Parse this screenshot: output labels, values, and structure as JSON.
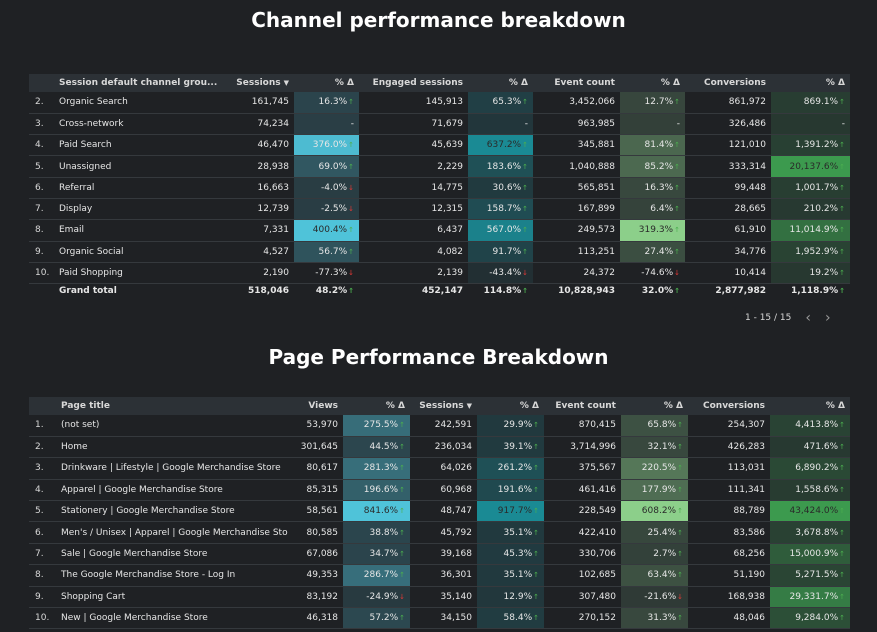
{
  "section1": {
    "title": "Channel performance breakdown",
    "columns": [
      "Session default channel grou...",
      "Sessions",
      "% Δ",
      "Engaged sessions",
      "% Δ",
      "Event count",
      "% Δ",
      "Conversions",
      "% Δ"
    ],
    "sort_indicator": "▼",
    "rows": [
      {
        "i": "2.",
        "name": "Organic Search",
        "c": [
          [
            "161,745"
          ],
          [
            "16.3%",
            "up"
          ],
          [
            "145,913"
          ],
          [
            "65.3%",
            "up"
          ],
          [
            "3,452,066"
          ],
          [
            "12.7%",
            "up"
          ],
          [
            "861,972"
          ],
          [
            "869.1%",
            "up"
          ]
        ]
      },
      {
        "i": "3.",
        "name": "Cross-network",
        "c": [
          [
            "74,234"
          ],
          [
            "-",
            ""
          ],
          [
            "71,679"
          ],
          [
            "-",
            ""
          ],
          [
            "963,985"
          ],
          [
            "-",
            ""
          ],
          [
            "326,486"
          ],
          [
            "-",
            ""
          ]
        ]
      },
      {
        "i": "4.",
        "name": "Paid Search",
        "c": [
          [
            "46,470"
          ],
          [
            "376.0%",
            "up"
          ],
          [
            "45,639"
          ],
          [
            "637.2%",
            "up"
          ],
          [
            "345,881"
          ],
          [
            "81.4%",
            "up"
          ],
          [
            "121,010"
          ],
          [
            "1,391.2%",
            "up"
          ]
        ]
      },
      {
        "i": "5.",
        "name": "Unassigned",
        "c": [
          [
            "28,938"
          ],
          [
            "69.0%",
            "up"
          ],
          [
            "2,229"
          ],
          [
            "183.6%",
            "up"
          ],
          [
            "1,040,888"
          ],
          [
            "85.2%",
            "up"
          ],
          [
            "333,314"
          ],
          [
            "20,137.6%",
            "up"
          ]
        ]
      },
      {
        "i": "6.",
        "name": "Referral",
        "c": [
          [
            "16,663"
          ],
          [
            "-4.0%",
            "down"
          ],
          [
            "14,775"
          ],
          [
            "30.6%",
            "up"
          ],
          [
            "565,851"
          ],
          [
            "16.3%",
            "up"
          ],
          [
            "99,448"
          ],
          [
            "1,001.7%",
            "up"
          ]
        ]
      },
      {
        "i": "7.",
        "name": "Display",
        "c": [
          [
            "12,739"
          ],
          [
            "-2.5%",
            "down"
          ],
          [
            "12,315"
          ],
          [
            "158.7%",
            "up"
          ],
          [
            "167,899"
          ],
          [
            "6.4%",
            "up"
          ],
          [
            "28,665"
          ],
          [
            "210.2%",
            "up"
          ]
        ]
      },
      {
        "i": "8.",
        "name": "Email",
        "c": [
          [
            "7,331"
          ],
          [
            "400.4%",
            "up"
          ],
          [
            "6,437"
          ],
          [
            "567.0%",
            "up"
          ],
          [
            "249,573"
          ],
          [
            "319.3%",
            "up"
          ],
          [
            "61,910"
          ],
          [
            "11,014.9%",
            "up"
          ]
        ]
      },
      {
        "i": "9.",
        "name": "Organic Social",
        "c": [
          [
            "4,527"
          ],
          [
            "56.7%",
            "up"
          ],
          [
            "4,082"
          ],
          [
            "91.7%",
            "up"
          ],
          [
            "113,251"
          ],
          [
            "27.4%",
            "up"
          ],
          [
            "34,776"
          ],
          [
            "1,952.9%",
            "up"
          ]
        ]
      },
      {
        "i": "10.",
        "name": "Paid Shopping",
        "c": [
          [
            "2,190"
          ],
          [
            "-77.3%",
            "down"
          ],
          [
            "2,139"
          ],
          [
            "-43.4%",
            "down"
          ],
          [
            "24,372"
          ],
          [
            "-74.6%",
            "down"
          ],
          [
            "10,414"
          ],
          [
            "19.2%",
            "up"
          ]
        ]
      }
    ],
    "total": {
      "name": "Grand total",
      "c": [
        [
          "518,046"
        ],
        [
          "48.2%",
          "up"
        ],
        [
          "452,147"
        ],
        [
          "114.8%",
          "up"
        ],
        [
          "10,828,943"
        ],
        [
          "32.0%",
          "up"
        ],
        [
          "2,877,982"
        ],
        [
          "1,118.9%",
          "up"
        ]
      ]
    },
    "pager": "1 - 15 / 15"
  },
  "section2": {
    "title": "Page Performance Breakdown",
    "columns": [
      "Page title",
      "Views",
      "% Δ",
      "Sessions",
      "% Δ",
      "Event count",
      "% Δ",
      "Conversions",
      "% Δ"
    ],
    "sort_indicator": "▼",
    "rows": [
      {
        "i": "1.",
        "name": "(not set)",
        "c": [
          [
            "53,970"
          ],
          [
            "275.5%",
            "up"
          ],
          [
            "242,591"
          ],
          [
            "29.9%",
            "up"
          ],
          [
            "870,415"
          ],
          [
            "65.8%",
            "up"
          ],
          [
            "254,307"
          ],
          [
            "4,413.8%",
            "up"
          ]
        ]
      },
      {
        "i": "2.",
        "name": "Home",
        "c": [
          [
            "301,645"
          ],
          [
            "44.5%",
            "up"
          ],
          [
            "236,034"
          ],
          [
            "39.1%",
            "up"
          ],
          [
            "3,714,996"
          ],
          [
            "32.1%",
            "up"
          ],
          [
            "426,283"
          ],
          [
            "471.6%",
            "up"
          ]
        ]
      },
      {
        "i": "3.",
        "name": "Drinkware | Lifestyle | Google Merchandise Store",
        "c": [
          [
            "80,617"
          ],
          [
            "281.3%",
            "up"
          ],
          [
            "64,026"
          ],
          [
            "261.2%",
            "up"
          ],
          [
            "375,567"
          ],
          [
            "220.5%",
            "up"
          ],
          [
            "113,031"
          ],
          [
            "6,890.2%",
            "up"
          ]
        ]
      },
      {
        "i": "4.",
        "name": "Apparel | Google Merchandise Store",
        "c": [
          [
            "85,315"
          ],
          [
            "196.6%",
            "up"
          ],
          [
            "60,968"
          ],
          [
            "191.6%",
            "up"
          ],
          [
            "461,416"
          ],
          [
            "177.9%",
            "up"
          ],
          [
            "111,341"
          ],
          [
            "1,558.6%",
            "up"
          ]
        ]
      },
      {
        "i": "5.",
        "name": "Stationery | Google Merchandise Store",
        "c": [
          [
            "58,561"
          ],
          [
            "841.6%",
            "up"
          ],
          [
            "48,747"
          ],
          [
            "917.7%",
            "up"
          ],
          [
            "228,549"
          ],
          [
            "608.2%",
            "up"
          ],
          [
            "88,789"
          ],
          [
            "43,424.0%",
            "up"
          ]
        ]
      },
      {
        "i": "6.",
        "name": "Men's / Unisex | Apparel | Google Merchandise Store",
        "c": [
          [
            "80,585"
          ],
          [
            "38.8%",
            "up"
          ],
          [
            "45,792"
          ],
          [
            "35.1%",
            "up"
          ],
          [
            "422,410"
          ],
          [
            "25.4%",
            "up"
          ],
          [
            "83,586"
          ],
          [
            "3,678.8%",
            "up"
          ]
        ]
      },
      {
        "i": "7.",
        "name": "Sale | Google Merchandise Store",
        "c": [
          [
            "67,086"
          ],
          [
            "34.7%",
            "up"
          ],
          [
            "39,168"
          ],
          [
            "45.3%",
            "up"
          ],
          [
            "330,706"
          ],
          [
            "2.7%",
            "up"
          ],
          [
            "68,256"
          ],
          [
            "15,000.9%",
            "up"
          ]
        ]
      },
      {
        "i": "8.",
        "name": "The Google Merchandise Store - Log In",
        "c": [
          [
            "49,353"
          ],
          [
            "286.7%",
            "up"
          ],
          [
            "36,301"
          ],
          [
            "35.1%",
            "up"
          ],
          [
            "102,685"
          ],
          [
            "63.4%",
            "up"
          ],
          [
            "51,190"
          ],
          [
            "5,271.5%",
            "up"
          ]
        ]
      },
      {
        "i": "9.",
        "name": "Shopping Cart",
        "c": [
          [
            "83,192"
          ],
          [
            "-24.9%",
            "down"
          ],
          [
            "35,140"
          ],
          [
            "12.9%",
            "up"
          ],
          [
            "307,480"
          ],
          [
            "-21.6%",
            "down"
          ],
          [
            "168,938"
          ],
          [
            "29,331.7%",
            "up"
          ]
        ]
      },
      {
        "i": "10.",
        "name": "New | Google Merchandise Store",
        "c": [
          [
            "46,318"
          ],
          [
            "57.2%",
            "up"
          ],
          [
            "34,150"
          ],
          [
            "58.4%",
            "up"
          ],
          [
            "270,152"
          ],
          [
            "31.3%",
            "up"
          ],
          [
            "48,046"
          ],
          [
            "9,284.0%",
            "up"
          ]
        ]
      }
    ]
  },
  "icons": {
    "up": "↑",
    "down": "↓",
    "prev": "chevron-left-icon",
    "next": "chevron-right-icon"
  },
  "colors": {
    "sessions": "#4fc3d9",
    "engaged": "#1a8a94",
    "events": "#8ccf8a",
    "conversions": "#3c9a4e"
  }
}
